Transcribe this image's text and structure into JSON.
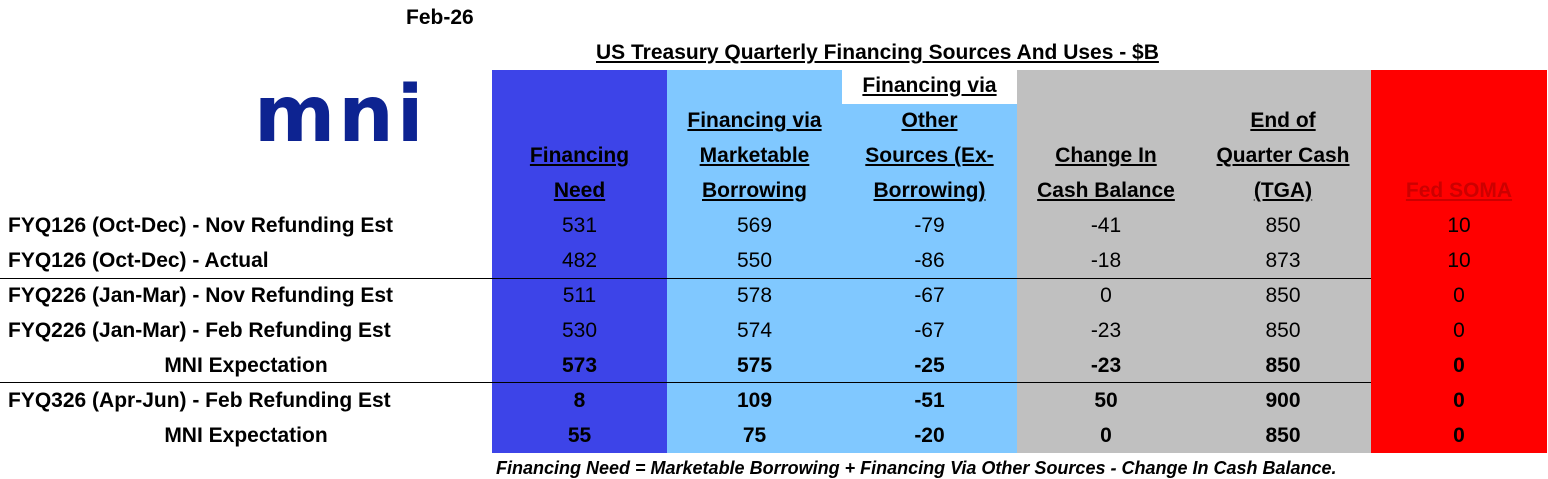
{
  "date": "Feb-26",
  "title": "US Treasury Quarterly Financing Sources And Uses - $B",
  "logo_text": "mni",
  "colors": {
    "logo": "#0d2391",
    "financing_need": "#3d44e8",
    "marketable": "#80c8ff",
    "other_sources": "#80c8ff",
    "cash_change": "#c0c0c0",
    "tga": "#c0c0c0",
    "fed_soma": "#ff0000"
  },
  "headers": [
    [
      "Financing ",
      "Need"
    ],
    [
      "Financing via ",
      "Marketable ",
      "Borrowing"
    ],
    [
      "Financing via ",
      "Other ",
      "Sources (Ex-",
      "Borrowing)"
    ],
    [
      "Change In ",
      "Cash Balance"
    ],
    [
      "End of ",
      "Quarter Cash ",
      "(TGA)"
    ],
    [
      "Fed SOMA"
    ]
  ],
  "rows": [
    {
      "label": "FYQ126 (Oct-Dec) - Nov Refunding Est",
      "values": [
        "531",
        "569",
        "-79",
        "-41",
        "850",
        "10"
      ]
    },
    {
      "label": "FYQ126 (Oct-Dec) - Actual",
      "values": [
        "482",
        "550",
        "-86",
        "-18",
        "873",
        "10"
      ]
    },
    {
      "label": "FYQ226 (Jan-Mar) - Nov Refunding Est",
      "values": [
        "511",
        "578",
        "-67",
        "0",
        "850",
        "0"
      ]
    },
    {
      "label": "FYQ226 (Jan-Mar) - Feb Refunding Est",
      "values": [
        "530",
        "574",
        "-67",
        "-23",
        "850",
        "0"
      ]
    },
    {
      "label": "MNI Expectation",
      "values": [
        "573",
        "575",
        "-25",
        "-23",
        "850",
        "0"
      ]
    },
    {
      "label": "FYQ326 (Apr-Jun) - Feb Refunding Est",
      "values": [
        "8",
        "109",
        "-51",
        "50",
        "900",
        "0"
      ]
    },
    {
      "label": "MNI Expectation",
      "values": [
        "55",
        "75",
        "-20",
        "0",
        "850",
        "0"
      ]
    }
  ],
  "footnote": "Financing Need = Marketable Borrowing + Financing Via Other Sources - Change In Cash Balance."
}
